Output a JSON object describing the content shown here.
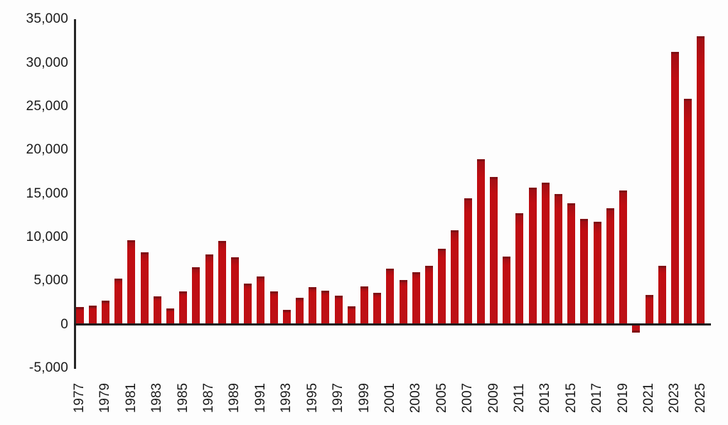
{
  "page": {
    "background_color": "#fdfdfd"
  },
  "chart_data": {
    "type": "bar",
    "title": "",
    "subtitle": "",
    "xlabel": "",
    "ylabel": "",
    "grid": false,
    "legend": null,
    "bar_color": "#bd1116",
    "bar_cap_color": "#821014",
    "axis_color": "#262626",
    "ylim": [
      -5000,
      35000
    ],
    "ytick_interval": 5000,
    "y_ticks": [
      {
        "value": 35000,
        "label": "35,000"
      },
      {
        "value": 30000,
        "label": "30,000"
      },
      {
        "value": 25000,
        "label": "25,000"
      },
      {
        "value": 20000,
        "label": "20,000"
      },
      {
        "value": 15000,
        "label": "15,000"
      },
      {
        "value": 10000,
        "label": "10,000"
      },
      {
        "value": 5000,
        "label": "5,000"
      },
      {
        "value": 0,
        "label": "0"
      },
      {
        "value": -5000,
        "label": "-5,000"
      }
    ],
    "categories": [
      1977,
      1978,
      1979,
      1980,
      1981,
      1982,
      1983,
      1984,
      1985,
      1986,
      1987,
      1988,
      1989,
      1990,
      1991,
      1992,
      1993,
      1994,
      1995,
      1996,
      1997,
      1998,
      1999,
      2000,
      2001,
      2002,
      2003,
      2004,
      2005,
      2006,
      2007,
      2008,
      2009,
      2010,
      2011,
      2012,
      2013,
      2014,
      2015,
      2016,
      2017,
      2018,
      2019,
      2020,
      2021,
      2022,
      2023,
      2024,
      2025
    ],
    "values": [
      2000,
      2200,
      2700,
      5300,
      9700,
      8300,
      3200,
      1800,
      3800,
      6600,
      8000,
      9600,
      7700,
      4700,
      5500,
      3800,
      1700,
      3100,
      4300,
      3900,
      3300,
      2100,
      4400,
      3600,
      6400,
      5100,
      6000,
      6700,
      8700,
      10800,
      14500,
      19000,
      16900,
      7800,
      12800,
      15700,
      16300,
      15000,
      13900,
      12100,
      11800,
      13300,
      15400,
      -900,
      3400,
      6700,
      31300,
      25900,
      33100
    ],
    "x_label_every": 2,
    "x_tick_labels": [
      "1977",
      "1979",
      "1981",
      "1983",
      "1985",
      "1987",
      "1989",
      "1991",
      "1993",
      "1995",
      "1997",
      "1999",
      "2001",
      "2003",
      "2005",
      "2007",
      "2009",
      "2011",
      "2013",
      "2015",
      "2017",
      "2019",
      "2021",
      "2023",
      "2025"
    ]
  }
}
